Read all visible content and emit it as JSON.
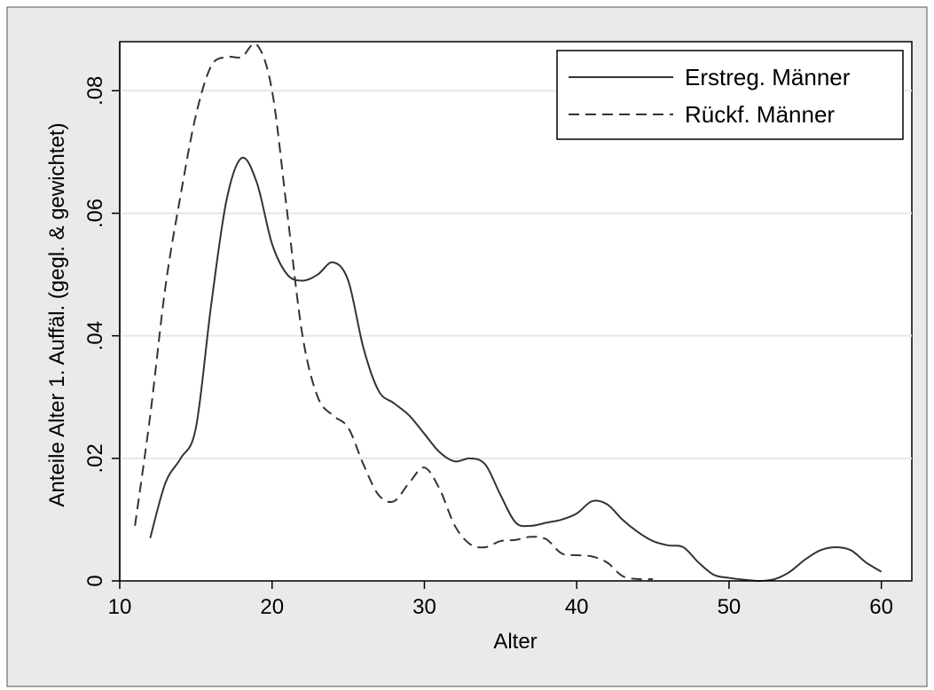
{
  "chart_data": {
    "type": "line",
    "title": "",
    "xlabel": "Alter",
    "ylabel": "Anteile Alter 1. Auffäl. (gegl. & gewichtet)",
    "xlim": [
      10,
      62
    ],
    "ylim": [
      0,
      0.088
    ],
    "x_ticks": [
      10,
      20,
      30,
      40,
      50,
      60
    ],
    "x_tick_labels": [
      "10",
      "20",
      "30",
      "40",
      "50",
      "60"
    ],
    "y_ticks": [
      0,
      0.02,
      0.04,
      0.06,
      0.08
    ],
    "y_tick_labels": [
      "0",
      ".02",
      ".04",
      ".06",
      ".08"
    ],
    "grid": "horizontal",
    "legend_position": "top-right",
    "colors": {
      "page_bg": "#ffffff",
      "outer_bg": "#eaeaea",
      "plot_bg": "#ffffff",
      "grid": "#e6e6e6",
      "line": "#333333"
    },
    "series": [
      {
        "name": "Erstreg. Männer",
        "style": "solid",
        "points": [
          [
            12,
            0.007
          ],
          [
            13,
            0.016
          ],
          [
            14,
            0.02
          ],
          [
            15,
            0.025
          ],
          [
            16,
            0.045
          ],
          [
            17,
            0.062
          ],
          [
            18,
            0.069
          ],
          [
            19,
            0.065
          ],
          [
            20,
            0.055
          ],
          [
            21,
            0.05
          ],
          [
            22,
            0.049
          ],
          [
            23,
            0.05
          ],
          [
            24,
            0.052
          ],
          [
            25,
            0.049
          ],
          [
            26,
            0.038
          ],
          [
            27,
            0.031
          ],
          [
            28,
            0.029
          ],
          [
            29,
            0.027
          ],
          [
            30,
            0.024
          ],
          [
            31,
            0.021
          ],
          [
            32,
            0.0195
          ],
          [
            33,
            0.02
          ],
          [
            34,
            0.019
          ],
          [
            35,
            0.014
          ],
          [
            36,
            0.0095
          ],
          [
            37,
            0.009
          ],
          [
            38,
            0.0095
          ],
          [
            39,
            0.01
          ],
          [
            40,
            0.011
          ],
          [
            41,
            0.013
          ],
          [
            42,
            0.0125
          ],
          [
            43,
            0.01
          ],
          [
            44,
            0.008
          ],
          [
            45,
            0.0065
          ],
          [
            46,
            0.0058
          ],
          [
            47,
            0.0055
          ],
          [
            48,
            0.003
          ],
          [
            49,
            0.001
          ],
          [
            50,
            0.0005
          ],
          [
            51,
            0.0002
          ],
          [
            52,
            0.0
          ],
          [
            53,
            0.0003
          ],
          [
            54,
            0.0015
          ],
          [
            55,
            0.0035
          ],
          [
            56,
            0.005
          ],
          [
            57,
            0.0055
          ],
          [
            58,
            0.005
          ],
          [
            59,
            0.003
          ],
          [
            60,
            0.0015
          ]
        ]
      },
      {
        "name": "Rückf. Männer",
        "style": "dashed",
        "points": [
          [
            11,
            0.009
          ],
          [
            12,
            0.027
          ],
          [
            13,
            0.048
          ],
          [
            14,
            0.063
          ],
          [
            15,
            0.076
          ],
          [
            16,
            0.084
          ],
          [
            17,
            0.0855
          ],
          [
            18,
            0.0855
          ],
          [
            19,
            0.0875
          ],
          [
            20,
            0.08
          ],
          [
            21,
            0.06
          ],
          [
            22,
            0.04
          ],
          [
            23,
            0.03
          ],
          [
            24,
            0.027
          ],
          [
            25,
            0.025
          ],
          [
            26,
            0.019
          ],
          [
            27,
            0.014
          ],
          [
            28,
            0.013
          ],
          [
            29,
            0.016
          ],
          [
            30,
            0.0185
          ],
          [
            31,
            0.015
          ],
          [
            32,
            0.009
          ],
          [
            33,
            0.006
          ],
          [
            34,
            0.0055
          ],
          [
            35,
            0.0065
          ],
          [
            36,
            0.0067
          ],
          [
            37,
            0.0072
          ],
          [
            38,
            0.0068
          ],
          [
            39,
            0.0045
          ],
          [
            40,
            0.0042
          ],
          [
            41,
            0.004
          ],
          [
            42,
            0.003
          ],
          [
            43,
            0.0008
          ],
          [
            44,
            0.0003
          ],
          [
            45,
            0.0003
          ]
        ]
      }
    ]
  }
}
